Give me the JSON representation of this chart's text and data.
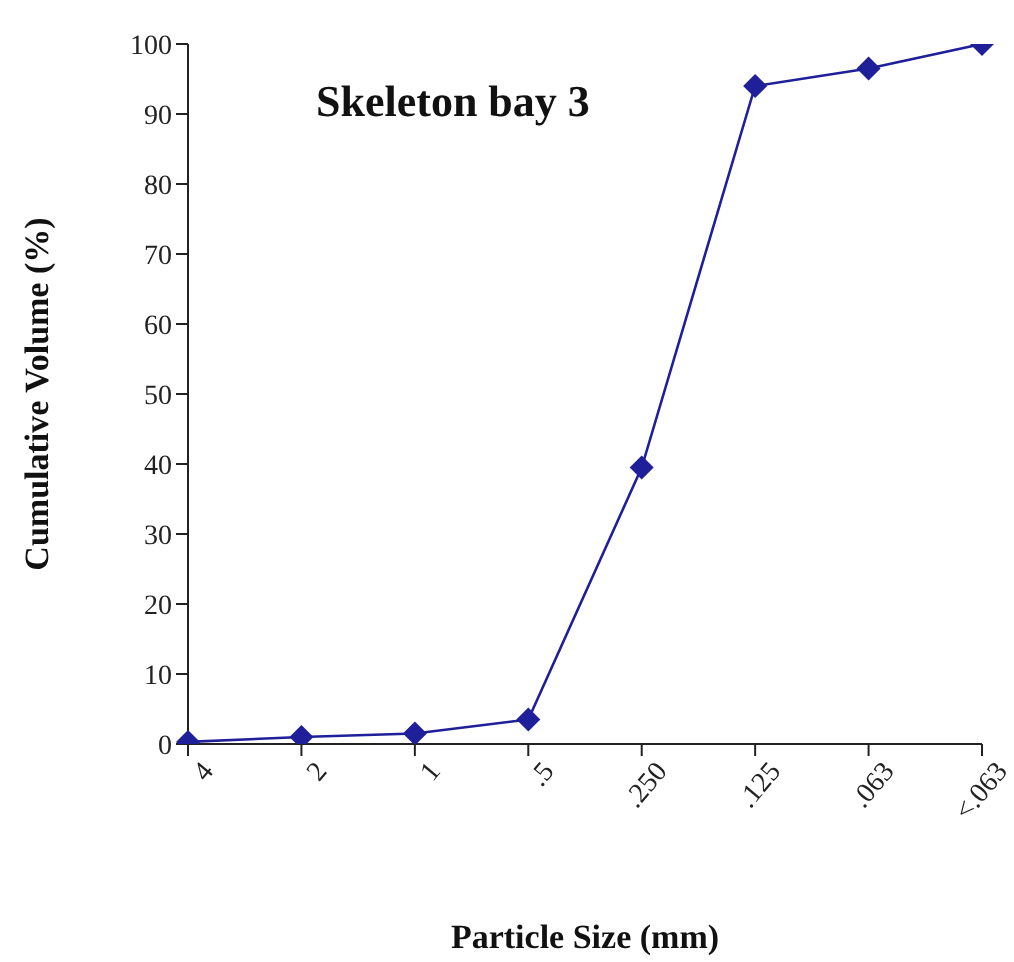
{
  "chart_data": {
    "type": "line",
    "title": "Skeleton bay 3",
    "xlabel": "Particle Size (mm)",
    "ylabel": "Cumulative  Volume  (%)",
    "categories": [
      "4",
      "2",
      "1",
      ".5",
      ".250",
      ".125",
      ".063",
      "<.063"
    ],
    "series": [
      {
        "color": "#1f1f9a",
        "values": [
          0.3,
          1,
          1.5,
          3.5,
          39.5,
          94,
          96.5,
          100
        ]
      }
    ],
    "ylim": [
      0,
      100
    ],
    "yticks": [
      0,
      10,
      20,
      30,
      40,
      50,
      60,
      70,
      80,
      90,
      100
    ],
    "grid": false,
    "legend": false,
    "marker": "diamond",
    "line_style": "solid"
  }
}
